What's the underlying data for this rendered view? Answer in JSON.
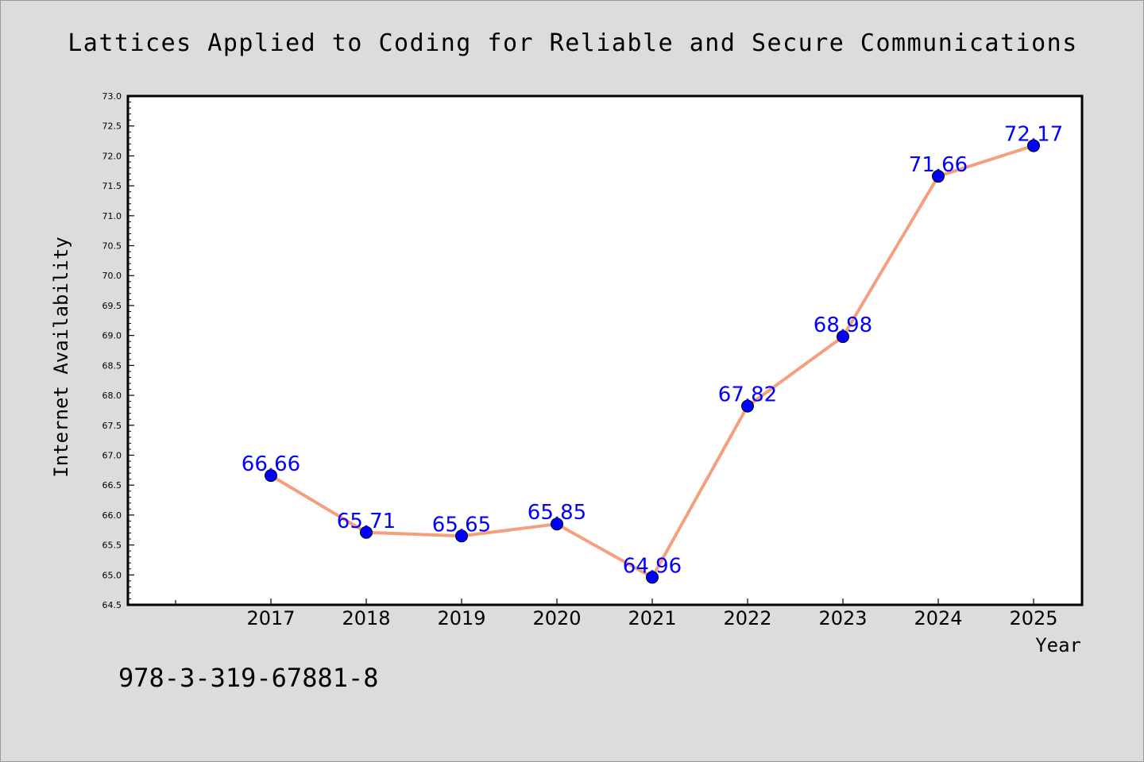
{
  "chart_data": {
    "type": "line",
    "title": "Lattices Applied to Coding for Reliable and Secure Communications",
    "xlabel": "Year",
    "ylabel": "Internet Availability",
    "footer": "978-3-319-67881-8",
    "x": [
      "2017",
      "2018",
      "2019",
      "2020",
      "2021",
      "2022",
      "2023",
      "2024",
      "2025"
    ],
    "series": [
      {
        "values": [
          66.66,
          65.71,
          65.65,
          65.85,
          64.96,
          67.82,
          68.98,
          71.66,
          72.17
        ],
        "labels": [
          "66.66",
          "65.71",
          "65.65",
          "65.85",
          "64.96",
          "67.82",
          "68.98",
          "71.66",
          "72.17"
        ],
        "line_color": "#f4a07e",
        "marker_color": "#0000ff"
      }
    ],
    "ylim": [
      64.5,
      73.0
    ],
    "ytick_step": 0.5,
    "ytick_labels": [
      "64.5",
      "65.0",
      "65.5",
      "66.0",
      "66.5",
      "67.0",
      "67.5",
      "68.0",
      "68.5",
      "69.0",
      "69.5",
      "70.0",
      "70.5",
      "71.0",
      "71.5",
      "72.0",
      "72.5",
      "73.0"
    ],
    "grid": false,
    "legend": false,
    "background_color": "#dcdcdc",
    "plot_background_color": "#ffffff",
    "label_color": "#0000ff"
  }
}
